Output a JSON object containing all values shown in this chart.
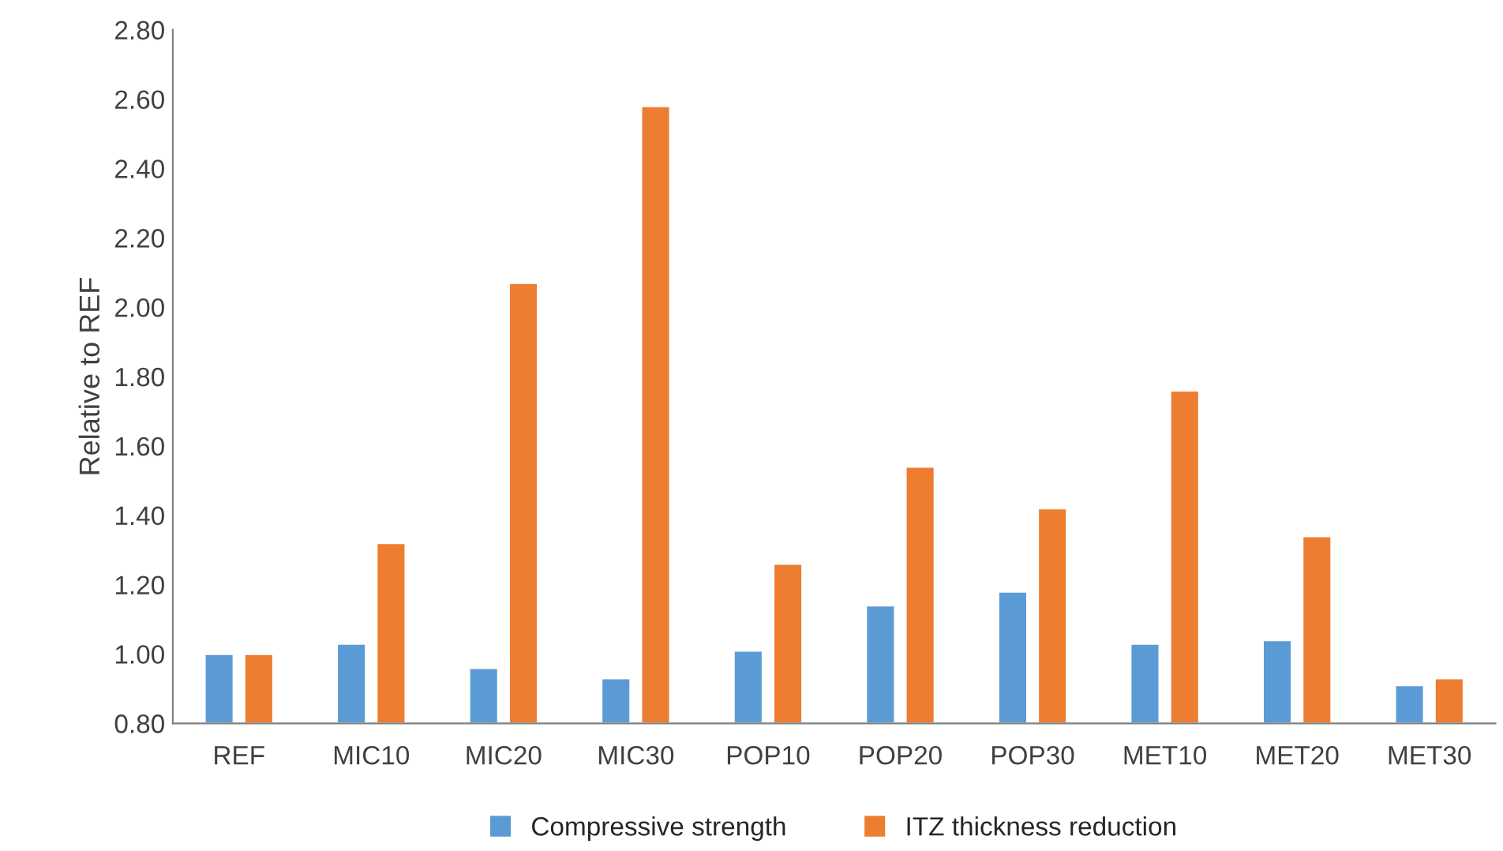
{
  "chart_data": {
    "type": "bar",
    "ylabel": "Relative to REF",
    "categories": [
      "REF",
      "MIC10",
      "MIC20",
      "MIC30",
      "POP10",
      "POP20",
      "POP30",
      "MET10",
      "MET20",
      "MET30"
    ],
    "series": [
      {
        "name": "Compressive strength",
        "color": "#5b9bd5",
        "values": [
          1.0,
          1.03,
          0.96,
          0.93,
          1.01,
          1.14,
          1.18,
          1.03,
          1.04,
          0.91
        ]
      },
      {
        "name": "ITZ thickness reduction",
        "color": "#ed7d31",
        "values": [
          1.0,
          1.32,
          2.07,
          2.58,
          1.26,
          1.54,
          1.42,
          1.76,
          1.34,
          0.93
        ]
      }
    ],
    "ylim": [
      0.8,
      2.8
    ],
    "yticks": [
      {
        "value": 0.8,
        "label": "0.80"
      },
      {
        "value": 1.0,
        "label": "1.00"
      },
      {
        "value": 1.2,
        "label": "1.20"
      },
      {
        "value": 1.4,
        "label": "1.40"
      },
      {
        "value": 1.6,
        "label": "1.60"
      },
      {
        "value": 1.8,
        "label": "1.80"
      },
      {
        "value": 2.0,
        "label": "2.00"
      },
      {
        "value": 2.2,
        "label": "2.20"
      },
      {
        "value": 2.4,
        "label": "2.40"
      },
      {
        "value": 2.6,
        "label": "2.60"
      },
      {
        "value": 2.8,
        "label": "2.80"
      }
    ],
    "grid": false,
    "legend": "bottom"
  }
}
